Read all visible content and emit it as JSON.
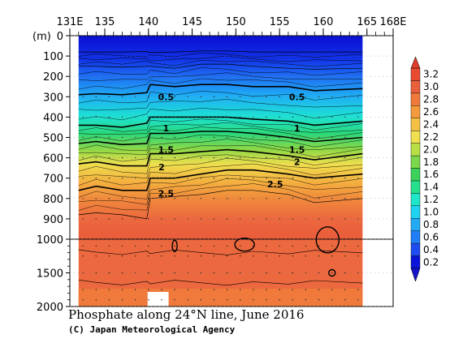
{
  "chart_data": {
    "type": "contour",
    "title": "Phosphate along 24°N line, June 2016",
    "credit": "(C) Japan Meteorological Agency",
    "x_unit": "E",
    "y_unit": "(m)",
    "xlim": [
      131,
      168
    ],
    "x_ticks": [
      {
        "value": 131,
        "label": "131E"
      },
      {
        "value": 135,
        "label": "135"
      },
      {
        "value": 140,
        "label": "140"
      },
      {
        "value": 145,
        "label": "145"
      },
      {
        "value": 150,
        "label": "150"
      },
      {
        "value": 155,
        "label": "155"
      },
      {
        "value": 160,
        "label": "160"
      },
      {
        "value": 165,
        "label": "165"
      },
      {
        "value": 168,
        "label": "168E"
      }
    ],
    "y_ticks_upper": [
      0,
      100,
      200,
      300,
      400,
      500,
      600,
      700,
      800,
      900,
      1000
    ],
    "y_ticks_lower": [
      1500,
      2000
    ],
    "y_break_depth": 1000,
    "data_extent_lon": [
      132,
      164.5
    ],
    "colorbar": {
      "levels": [
        0.2,
        0.4,
        0.6,
        0.8,
        1.0,
        1.2,
        1.4,
        1.6,
        1.8,
        2.0,
        2.2,
        2.4,
        2.6,
        2.8,
        3.0,
        3.2
      ],
      "labels": [
        "0.2",
        "0.4",
        "0.6",
        "0.8",
        "1.0",
        "1.2",
        "1.4",
        "1.6",
        "1.8",
        "2.0",
        "2.2",
        "2.4",
        "2.6",
        "2.8",
        "3.0",
        "3.2"
      ],
      "colors": [
        "#0a14d8",
        "#1f4cf0",
        "#1f7ef5",
        "#22aaf5",
        "#1fd2f0",
        "#1ee6c8",
        "#26e08c",
        "#3ad25a",
        "#7ad84a",
        "#b8e046",
        "#f0e050",
        "#f4c044",
        "#f39a3c",
        "#ef7a3c",
        "#ea5f3c",
        "#e94a32"
      ],
      "under_color": "#1414cc",
      "over_color": "#e03a2a"
    },
    "contour_depths": [
      {
        "value": 0.2,
        "depth": [
          80,
          80,
          80,
          78,
          82,
          80,
          75,
          75,
          80,
          80,
          80,
          80
        ]
      },
      {
        "value": 0.4,
        "depth": [
          150,
          150,
          155,
          150,
          150,
          160,
          140,
          140,
          150,
          160,
          165,
          160
        ]
      },
      {
        "value": 0.5,
        "depth": [
          290,
          285,
          290,
          280,
          240,
          250,
          240,
          240,
          250,
          250,
          270,
          260
        ]
      },
      {
        "value": 1.0,
        "depth": [
          440,
          440,
          450,
          430,
          400,
          400,
          400,
          400,
          410,
          420,
          440,
          420
        ]
      },
      {
        "value": 1.5,
        "depth": [
          530,
          520,
          535,
          530,
          480,
          480,
          470,
          470,
          480,
          500,
          520,
          500
        ]
      },
      {
        "value": 2.0,
        "depth": [
          630,
          620,
          640,
          640,
          580,
          580,
          570,
          560,
          570,
          590,
          610,
          580
        ]
      },
      {
        "value": 2.5,
        "depth": [
          760,
          740,
          760,
          760,
          700,
          700,
          680,
          660,
          660,
          680,
          700,
          680
        ]
      },
      {
        "value": 2.8,
        "depth": [
          880,
          870,
          880,
          900,
          800,
          790,
          780,
          760,
          760,
          780,
          820,
          800
        ]
      }
    ],
    "contour_lons": [
      132,
      134,
      137,
      139.8,
      140.2,
      143,
      146,
      149,
      152,
      156,
      159,
      164.5
    ],
    "contour_labels": [
      {
        "text": "0.5",
        "lon": 142,
        "depth": 300
      },
      {
        "text": "0.5",
        "lon": 157,
        "depth": 300
      },
      {
        "text": "1",
        "lon": 142,
        "depth": 455
      },
      {
        "text": "1",
        "lon": 157,
        "depth": 455
      },
      {
        "text": "1.5",
        "lon": 142,
        "depth": 560
      },
      {
        "text": "1.5",
        "lon": 157,
        "depth": 560
      },
      {
        "text": "2",
        "lon": 141.5,
        "depth": 645
      },
      {
        "text": "2",
        "lon": 157,
        "depth": 620
      },
      {
        "text": "2.5",
        "lon": 142,
        "depth": 775
      },
      {
        "text": "2.5",
        "lon": 154.5,
        "depth": 730
      }
    ]
  }
}
